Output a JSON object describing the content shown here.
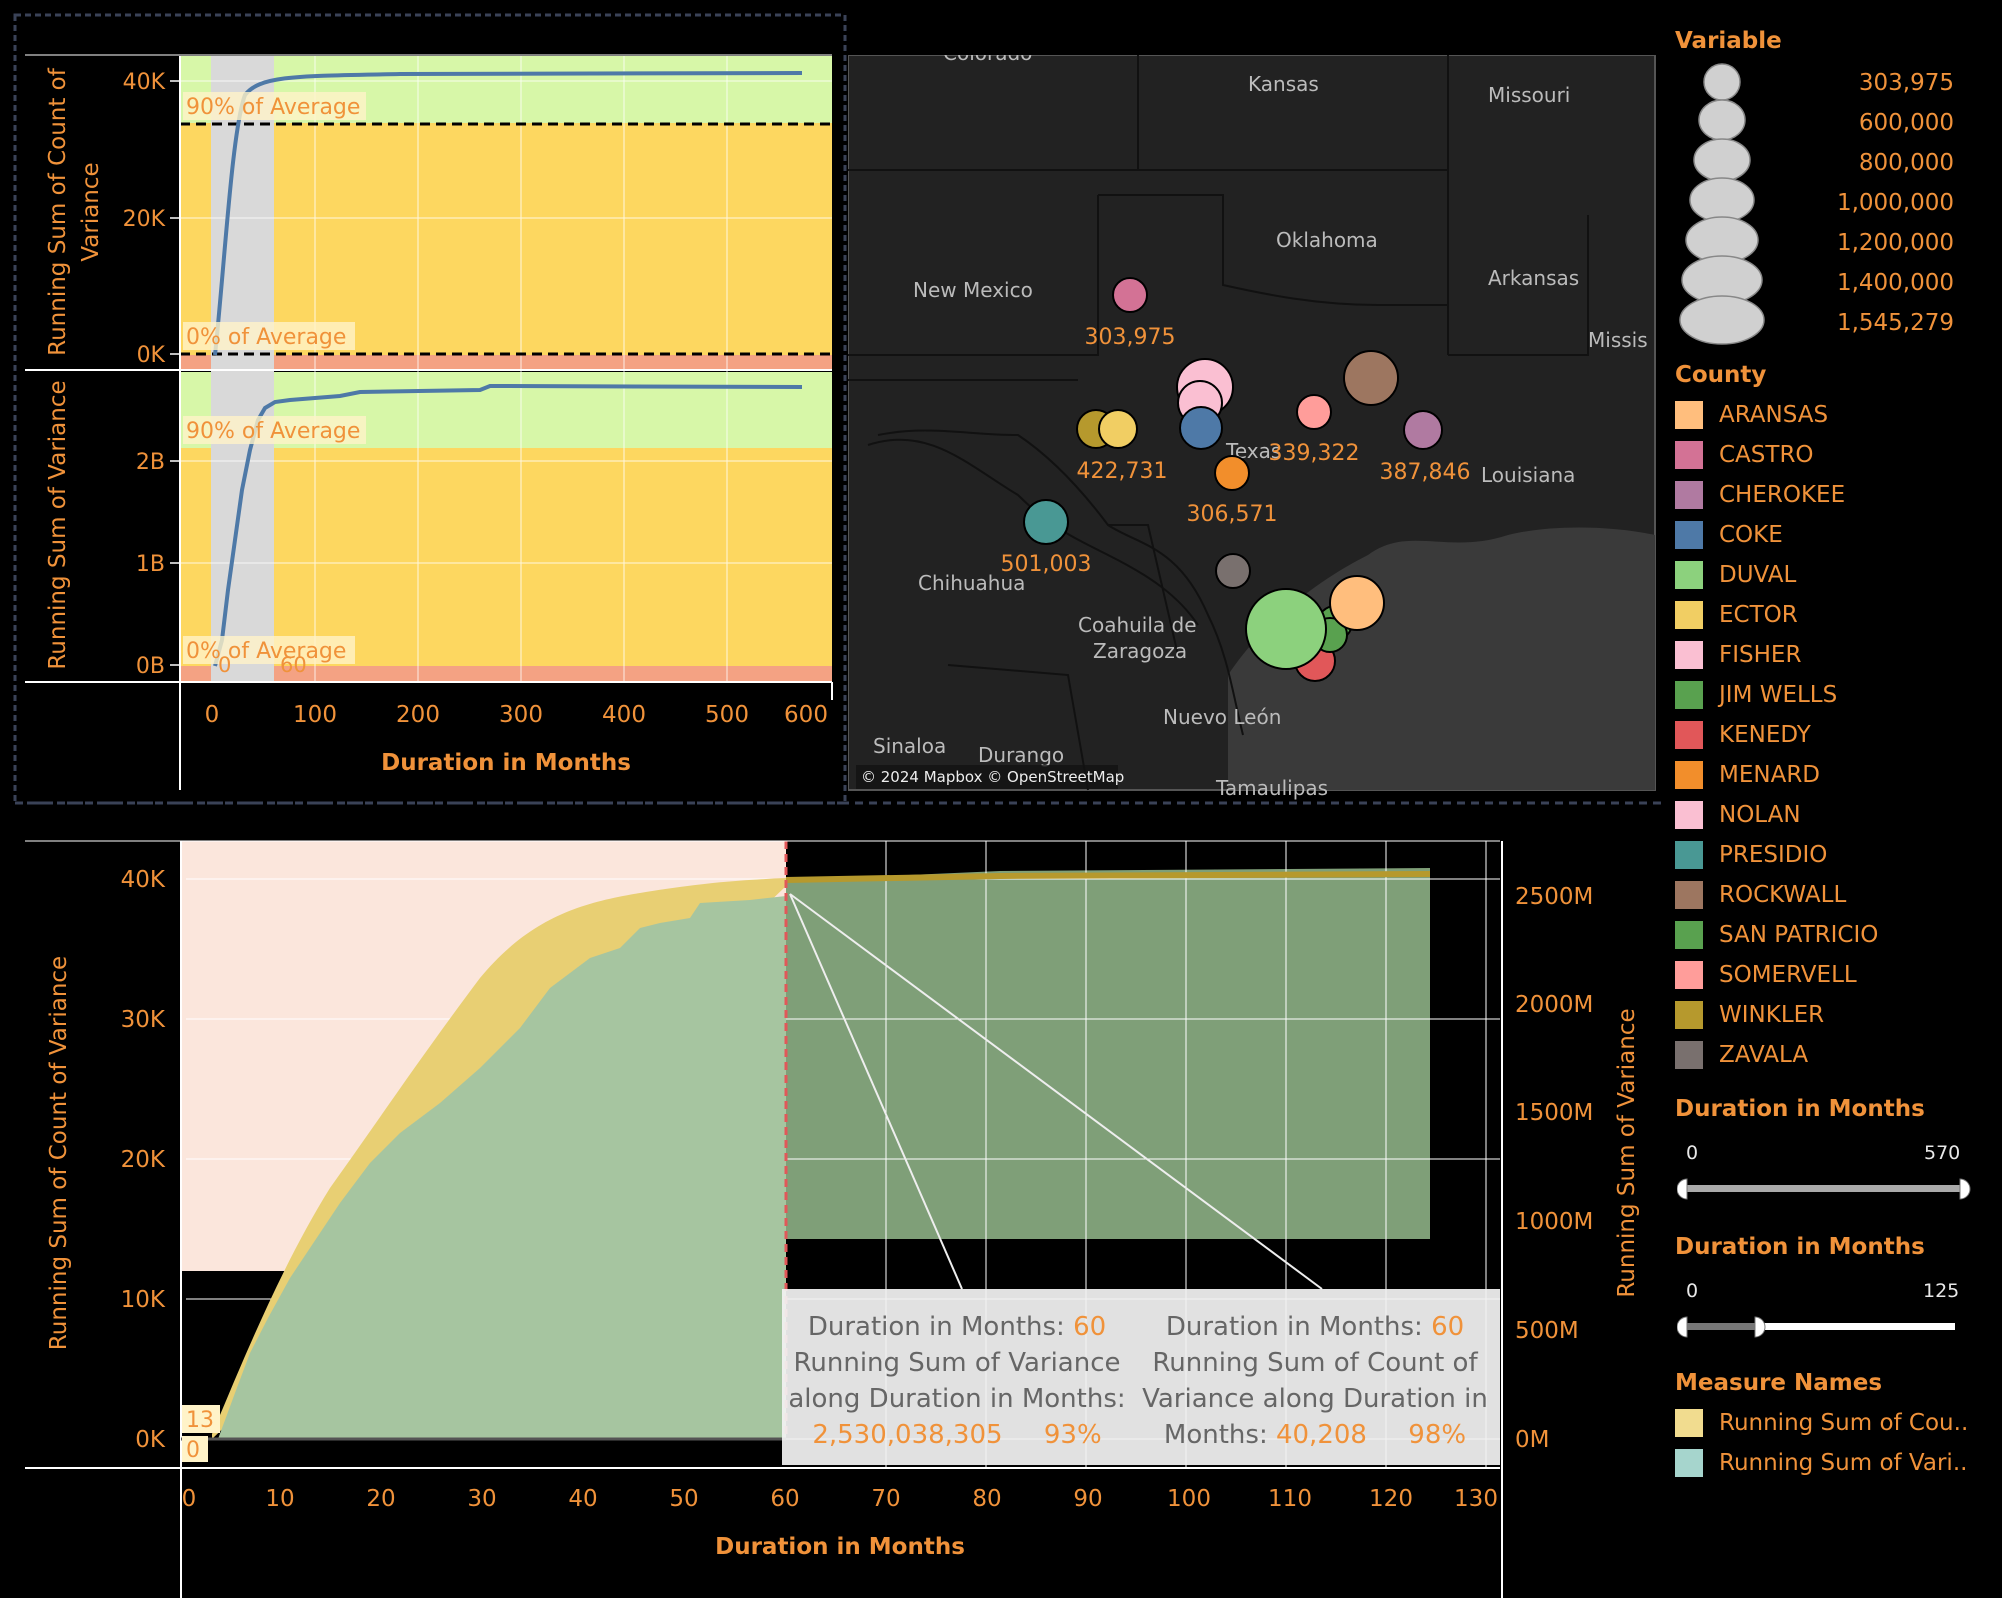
{
  "top_left_chart": {
    "upper_ylabel": "Running Sum of Count of Variance",
    "upper_ticks": [
      "40K",
      "20K",
      "0K"
    ],
    "lower_ylabel": "Running Sum of Variance",
    "lower_ticks": [
      "2B",
      "1B",
      "0B"
    ],
    "ref_90": "90% of Average",
    "ref_0": "0% of Average",
    "band_start": "0",
    "band_end": "60",
    "x_ticks": [
      "0",
      "100",
      "200",
      "300",
      "400",
      "500",
      "600"
    ],
    "xlabel": "Duration in Months"
  },
  "map": {
    "place_labels": [
      "Colorado",
      "Kansas",
      "Missouri",
      "Oklahoma",
      "Arkansas",
      "New Mexico",
      "Missis",
      "Texas",
      "Louisiana",
      "Chihuahua",
      "Coahuila de",
      "Zaragoza",
      "Nuevo León",
      "Sinaloa",
      "Durango",
      "Tamaulipas"
    ],
    "bubble_labels": [
      "303,975",
      "422,731",
      "339,322",
      "387,846",
      "306,571",
      "501,003"
    ],
    "attribution": "© 2024 Mapbox © OpenStreetMap"
  },
  "bottom_chart": {
    "ylabel_left": "Running Sum of Count of Variance",
    "ylabel_right": "Running Sum of Variance",
    "left_ticks": [
      "40K",
      "30K",
      "20K",
      "10K",
      "0K"
    ],
    "right_ticks": [
      "2500M",
      "2000M",
      "1500M",
      "1000M",
      "500M",
      "0M"
    ],
    "x_ticks": [
      "0",
      "10",
      "20",
      "30",
      "40",
      "50",
      "60",
      "70",
      "80",
      "90",
      "100",
      "110",
      "120",
      "130"
    ],
    "xlabel": "Duration in Months",
    "start_label_13": "13",
    "start_label_0": "0"
  },
  "tooltip": {
    "left": {
      "duration_label": "Duration in Months:",
      "duration_value": "60",
      "measure_line1": "Running Sum of Variance",
      "measure_line2": "along Duration in Months:",
      "value": "2,530,038,305",
      "pct": "93%"
    },
    "right": {
      "duration_label": "Duration in Months:",
      "duration_value": "60",
      "measure_line1": "Running Sum of Count of",
      "measure_line2": "Variance along Duration in",
      "measure_line3": "Months:",
      "value": "40,208",
      "pct": "98%"
    }
  },
  "legend": {
    "variable_title": "Variable",
    "size_labels": [
      "303,975",
      "600,000",
      "800,000",
      "1,000,000",
      "1,200,000",
      "1,400,000",
      "1,545,279"
    ],
    "county_title": "County",
    "counties": [
      {
        "name": "ARANSAS",
        "color": "#ffbe7d"
      },
      {
        "name": "CASTRO",
        "color": "#d37295"
      },
      {
        "name": "CHEROKEE",
        "color": "#b07aa1"
      },
      {
        "name": "COKE",
        "color": "#4e79a7"
      },
      {
        "name": "DUVAL",
        "color": "#8cd17d"
      },
      {
        "name": "ECTOR",
        "color": "#f1ce63"
      },
      {
        "name": "FISHER",
        "color": "#fabfd2"
      },
      {
        "name": "JIM WELLS",
        "color": "#59a14f"
      },
      {
        "name": "KENEDY",
        "color": "#e15759"
      },
      {
        "name": "MENARD",
        "color": "#f28e2b"
      },
      {
        "name": "NOLAN",
        "color": "#fabfd2"
      },
      {
        "name": "PRESIDIO",
        "color": "#499894"
      },
      {
        "name": "ROCKWALL",
        "color": "#9d7660"
      },
      {
        "name": "SAN PATRICIO",
        "color": "#59a14f"
      },
      {
        "name": "SOMERVELL",
        "color": "#ff9d9a"
      },
      {
        "name": "WINKLER",
        "color": "#b6992d"
      },
      {
        "name": "ZAVALA",
        "color": "#79706e"
      }
    ],
    "slider1": {
      "title": "Duration in Months",
      "min": "0",
      "max": "570"
    },
    "slider2": {
      "title": "Duration in Months",
      "min": "0",
      "max": "125"
    },
    "measure_title": "Measure Names",
    "measures": [
      {
        "name": "Running Sum of Cou..",
        "color": "#f1dc8f"
      },
      {
        "name": "Running Sum of Vari..",
        "color": "#a6d5cd"
      }
    ]
  }
}
